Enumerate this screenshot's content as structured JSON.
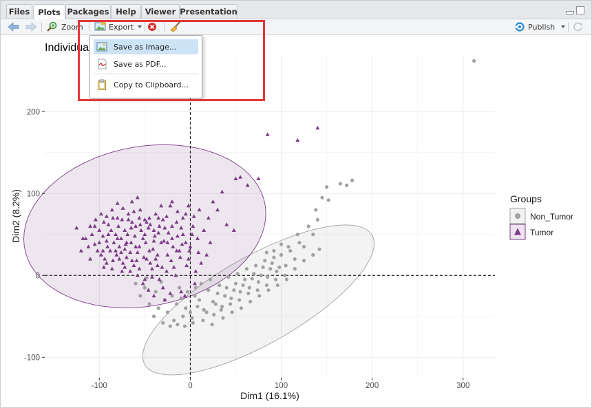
{
  "tabs": [
    {
      "label": "Files"
    },
    {
      "label": "Plots"
    },
    {
      "label": "Packages"
    },
    {
      "label": "Help"
    },
    {
      "label": "Viewer"
    },
    {
      "label": "Presentation"
    }
  ],
  "toolbar": {
    "zoom_label": "Zoom",
    "export_label": "Export",
    "publish_label": "Publish",
    "icons": {
      "back": "arrow-left-icon",
      "forward": "arrow-right-icon",
      "zoom": "magnifier-icon",
      "export": "export-image-icon",
      "remove": "remove-plot-icon",
      "broom": "broom-icon",
      "publish": "publish-icon",
      "refresh": "refresh-icon"
    }
  },
  "export_menu": {
    "items": [
      {
        "label": "Save as Image..."
      },
      {
        "label": "Save as PDF..."
      },
      {
        "label": "Copy to Clipboard..."
      }
    ],
    "highlighted": 0
  },
  "colors": {
    "non_tumor": "#a1a1a1",
    "tumor": "#7b3b86",
    "highlight_box": "#e2383b",
    "menu_highlight": "#cde3f6"
  },
  "chart_data": {
    "type": "scatter",
    "title": "Individua",
    "xlabel": "Dim1 (16.1%)",
    "ylabel": "Dim2 (8.2%)",
    "xlim": [
      -160,
      335
    ],
    "ylim": [
      -125,
      270
    ],
    "xticks": [
      -100,
      0,
      100,
      200,
      300
    ],
    "yticks": [
      -100,
      0,
      100,
      200
    ],
    "xtick_labels": [
      "-100",
      "0",
      "100",
      "200",
      "300"
    ],
    "ytick_labels": [
      "-100",
      "0",
      "100",
      "200"
    ],
    "grid": true,
    "reference_lines": {
      "x": 0,
      "y": 0,
      "style": "dashed"
    },
    "legend": {
      "title": "Groups",
      "placement": "right"
    },
    "series": [
      {
        "name": "Non_Tumor",
        "marker": "circle",
        "color": "#a1a1a1",
        "ellipse": {
          "center": [
            75,
            -30
          ],
          "rx": 148,
          "ry": 52,
          "angle_deg": 33
        },
        "points": [
          [
            -15,
            -35
          ],
          [
            -10,
            -28
          ],
          [
            -5,
            -40
          ],
          [
            0,
            -45
          ],
          [
            5,
            -25
          ],
          [
            10,
            -30
          ],
          [
            15,
            -42
          ],
          [
            20,
            -18
          ],
          [
            25,
            -32
          ],
          [
            30,
            -22
          ],
          [
            35,
            -38
          ],
          [
            40,
            -15
          ],
          [
            45,
            -28
          ],
          [
            50,
            -10
          ],
          [
            55,
            -20
          ],
          [
            60,
            -5
          ],
          [
            65,
            -15
          ],
          [
            70,
            2
          ],
          [
            75,
            -8
          ],
          [
            80,
            10
          ],
          [
            85,
            -2
          ],
          [
            90,
            15
          ],
          [
            95,
            5
          ],
          [
            100,
            25
          ],
          [
            105,
            12
          ],
          [
            110,
            30
          ],
          [
            115,
            20
          ],
          [
            120,
            40
          ],
          [
            125,
            35
          ],
          [
            130,
            60
          ],
          [
            135,
            50
          ],
          [
            138,
            80
          ],
          [
            140,
            68
          ],
          [
            145,
            95
          ],
          [
            150,
            108
          ],
          [
            152,
            92
          ],
          [
            165,
            112
          ],
          [
            172,
            110
          ],
          [
            178,
            116
          ],
          [
            -20,
            -25
          ],
          [
            -12,
            -15
          ],
          [
            -8,
            -50
          ],
          [
            2,
            -52
          ],
          [
            8,
            -38
          ],
          [
            12,
            -10
          ],
          [
            18,
            -45
          ],
          [
            22,
            -5
          ],
          [
            28,
            -35
          ],
          [
            32,
            -12
          ],
          [
            38,
            -25
          ],
          [
            42,
            -2
          ],
          [
            48,
            -18
          ],
          [
            52,
            2
          ],
          [
            58,
            -12
          ],
          [
            62,
            8
          ],
          [
            68,
            -4
          ],
          [
            72,
            12
          ],
          [
            78,
            0
          ],
          [
            82,
            18
          ],
          [
            88,
            8
          ],
          [
            92,
            22
          ],
          [
            98,
            10
          ],
          [
            -25,
            -45
          ],
          [
            -18,
            -55
          ],
          [
            -3,
            -20
          ],
          [
            6,
            -15
          ],
          [
            14,
            -55
          ],
          [
            26,
            -48
          ],
          [
            34,
            -42
          ],
          [
            44,
            -35
          ],
          [
            54,
            -30
          ],
          [
            64,
            -22
          ],
          [
            74,
            -18
          ],
          [
            84,
            -12
          ],
          [
            94,
            -5
          ],
          [
            104,
            0
          ],
          [
            -30,
            -58
          ],
          [
            -22,
            -62
          ],
          [
            -14,
            -60
          ],
          [
            -6,
            -62
          ],
          [
            3,
            -58
          ],
          [
            24,
            -60
          ],
          [
            36,
            -52
          ],
          [
            46,
            -45
          ],
          [
            56,
            -40
          ],
          [
            66,
            -32
          ],
          [
            76,
            -25
          ],
          [
            86,
            -18
          ],
          [
            96,
            -12
          ],
          [
            106,
            -5
          ],
          [
            -35,
            -40
          ],
          [
            -28,
            -30
          ],
          [
            -40,
            -50
          ],
          [
            -45,
            -35
          ],
          [
            -50,
            -15
          ],
          [
            -55,
            -25
          ],
          [
            -60,
            -10
          ],
          [
            -48,
            -3
          ],
          [
            -38,
            -20
          ],
          [
            -32,
            -8
          ],
          [
            115,
            8
          ],
          [
            125,
            18
          ],
          [
            108,
            35
          ],
          [
            100,
            38
          ],
          [
            92,
            30
          ],
          [
            84,
            28
          ],
          [
            135,
            25
          ],
          [
            142,
            32
          ],
          [
            118,
            50
          ],
          [
            312,
            262
          ]
        ]
      },
      {
        "name": "Tumor",
        "marker": "triangle",
        "color": "#7b3b86",
        "ellipse": {
          "center": [
            -50,
            60
          ],
          "rx": 135,
          "ry": 97,
          "angle_deg": 14
        },
        "points": [
          [
            -125,
            58
          ],
          [
            -120,
            30
          ],
          [
            -115,
            45
          ],
          [
            -110,
            20
          ],
          [
            -105,
            38
          ],
          [
            -100,
            55
          ],
          [
            -98,
            25
          ],
          [
            -95,
            10
          ],
          [
            -92,
            42
          ],
          [
            -90,
            62
          ],
          [
            -88,
            30
          ],
          [
            -85,
            18
          ],
          [
            -82,
            50
          ],
          [
            -80,
            70
          ],
          [
            -78,
            35
          ],
          [
            -75,
            5
          ],
          [
            -72,
            55
          ],
          [
            -70,
            22
          ],
          [
            -68,
            75
          ],
          [
            -65,
            40
          ],
          [
            -62,
            12
          ],
          [
            -60,
            60
          ],
          [
            -58,
            28
          ],
          [
            -55,
            80
          ],
          [
            -52,
            45
          ],
          [
            -50,
            -5
          ],
          [
            -48,
            65
          ],
          [
            -45,
            30
          ],
          [
            -42,
            8
          ],
          [
            -40,
            55
          ],
          [
            -38,
            20
          ],
          [
            -35,
            70
          ],
          [
            -32,
            40
          ],
          [
            -30,
            -15
          ],
          [
            -28,
            58
          ],
          [
            -25,
            25
          ],
          [
            -22,
            85
          ],
          [
            -20,
            45
          ],
          [
            -18,
            10
          ],
          [
            -15,
            65
          ],
          [
            -12,
            30
          ],
          [
            -10,
            -20
          ],
          [
            -8,
            50
          ],
          [
            -5,
            75
          ],
          [
            -2,
            20
          ],
          [
            0,
            35
          ],
          [
            3,
            60
          ],
          [
            5,
            -10
          ],
          [
            8,
            45
          ],
          [
            10,
            80
          ],
          [
            12,
            15
          ],
          [
            15,
            55
          ],
          [
            18,
            25
          ],
          [
            20,
            70
          ],
          [
            22,
            40
          ],
          [
            25,
            90
          ],
          [
            -118,
            45
          ],
          [
            -112,
            35
          ],
          [
            -108,
            50
          ],
          [
            -102,
            30
          ],
          [
            -96,
            48
          ],
          [
            -94,
            20
          ],
          [
            -91,
            35
          ],
          [
            -87,
            55
          ],
          [
            -84,
            40
          ],
          [
            -81,
            25
          ],
          [
            -79,
            60
          ],
          [
            -76,
            45
          ],
          [
            -74,
            15
          ],
          [
            -71,
            38
          ],
          [
            -69,
            50
          ],
          [
            -66,
            28
          ],
          [
            -64,
            65
          ],
          [
            -61,
            48
          ],
          [
            -59,
            18
          ],
          [
            -56,
            35
          ],
          [
            -54,
            55
          ],
          [
            -51,
            22
          ],
          [
            -49,
            40
          ],
          [
            -46,
            58
          ],
          [
            -44,
            15
          ],
          [
            -41,
            32
          ],
          [
            -39,
            48
          ],
          [
            -36,
            25
          ],
          [
            -34,
            60
          ],
          [
            -31,
            10
          ],
          [
            -29,
            42
          ],
          [
            -26,
            5
          ],
          [
            -24,
            52
          ],
          [
            -21,
            18
          ],
          [
            -19,
            35
          ],
          [
            -16,
            0
          ],
          [
            -14,
            48
          ],
          [
            -11,
            22
          ],
          [
            -9,
            38
          ],
          [
            -6,
            -25
          ],
          [
            -4,
            12
          ],
          [
            -1,
            30
          ],
          [
            2,
            50
          ],
          [
            6,
            5
          ],
          [
            9,
            28
          ],
          [
            -105,
            60
          ],
          [
            -100,
            40
          ],
          [
            -95,
            65
          ],
          [
            -90,
            50
          ],
          [
            -85,
            70
          ],
          [
            -80,
            45
          ],
          [
            -75,
            68
          ],
          [
            -70,
            40
          ],
          [
            -65,
            58
          ],
          [
            -60,
            35
          ],
          [
            -55,
            62
          ],
          [
            -50,
            50
          ],
          [
            -45,
            70
          ],
          [
            -40,
            42
          ],
          [
            -35,
            52
          ],
          [
            -30,
            68
          ],
          [
            -25,
            40
          ],
          [
            -20,
            60
          ],
          [
            -15,
            30
          ],
          [
            -10,
            58
          ],
          [
            -5,
            40
          ],
          [
            -82,
            30
          ],
          [
            -76,
            28
          ],
          [
            -72,
            10
          ],
          [
            -66,
            5
          ],
          [
            -58,
            0
          ],
          [
            -52,
            -10
          ],
          [
            -46,
            -18
          ],
          [
            -40,
            -25
          ],
          [
            -34,
            -5
          ],
          [
            -28,
            -30
          ],
          [
            -22,
            -22
          ],
          [
            -96,
            30
          ],
          [
            -92,
            15
          ],
          [
            -86,
            8
          ],
          [
            -78,
            20
          ],
          [
            -72,
            32
          ],
          [
            -64,
            18
          ],
          [
            -56,
            8
          ],
          [
            -48,
            20
          ],
          [
            -42,
            -2
          ],
          [
            -36,
            12
          ],
          [
            -110,
            60
          ],
          [
            -104,
            68
          ],
          [
            -98,
            75
          ],
          [
            -92,
            72
          ],
          [
            -86,
            80
          ],
          [
            -80,
            88
          ],
          [
            -74,
            82
          ],
          [
            -68,
            68
          ],
          [
            -62,
            78
          ],
          [
            -56,
            70
          ],
          [
            -50,
            68
          ],
          [
            -44,
            62
          ],
          [
            -38,
            75
          ],
          [
            -32,
            85
          ],
          [
            -26,
            72
          ],
          [
            -20,
            90
          ],
          [
            -14,
            78
          ],
          [
            -8,
            70
          ],
          [
            -2,
            85
          ],
          [
            4,
            72
          ],
          [
            35,
            102
          ],
          [
            50,
            118
          ],
          [
            55,
            120
          ],
          [
            63,
            110
          ],
          [
            75,
            118
          ],
          [
            85,
            172
          ],
          [
            118,
            165
          ],
          [
            140,
            180
          ],
          [
            30,
            80
          ],
          [
            40,
            62
          ],
          [
            48,
            55
          ],
          [
            -64,
            90
          ],
          [
            -58,
            95
          ]
        ]
      }
    ]
  }
}
